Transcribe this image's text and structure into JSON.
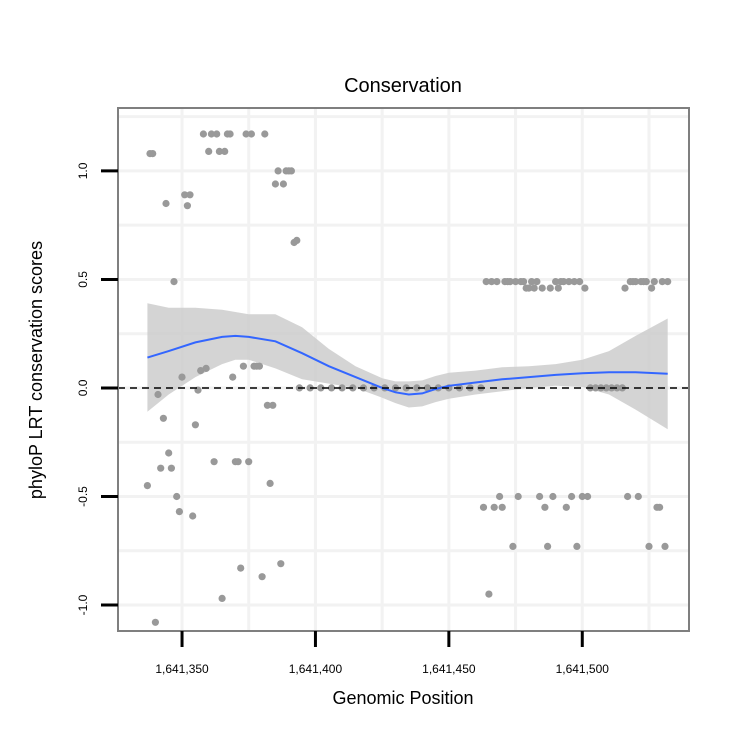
{
  "chart_data": {
    "type": "scatter",
    "title": "Conservation",
    "xlabel": "Genomic Position",
    "ylabel": "phyloP LRT conservation scores",
    "xlim": [
      1641326,
      1641540
    ],
    "ylim": [
      -1.12,
      1.29
    ],
    "x_ticks": [
      1641350,
      1641400,
      1641450,
      1641500
    ],
    "x_tick_labels": [
      "1,641,350",
      "1,641,400",
      "1,641,450",
      "1,641,500"
    ],
    "y_ticks": [
      -1.0,
      -0.5,
      0.0,
      0.5,
      1.0
    ],
    "y_tick_labels": [
      "-1.0",
      "-0.5",
      "0.0",
      "0.5",
      "1.0"
    ],
    "reference_line": {
      "y": 0,
      "style": "dashed"
    },
    "grid": true,
    "colors": {
      "points": "#999999",
      "smooth_line": "#3366ff",
      "ribbon": "#cccccc",
      "panel_border": "#7f7f7f",
      "grid": "#f2f2f2"
    },
    "series": [
      {
        "name": "phyloP scores",
        "points": [
          [
            1641337,
            -0.45
          ],
          [
            1641338,
            1.08
          ],
          [
            1641339,
            1.08
          ],
          [
            1641340,
            -1.08
          ],
          [
            1641341,
            -0.03
          ],
          [
            1641342,
            -0.37
          ],
          [
            1641343,
            -0.14
          ],
          [
            1641344,
            0.85
          ],
          [
            1641345,
            -0.3
          ],
          [
            1641346,
            -0.37
          ],
          [
            1641347,
            0.49
          ],
          [
            1641348,
            -0.5
          ],
          [
            1641349,
            -0.57
          ],
          [
            1641350,
            0.05
          ],
          [
            1641351,
            0.89
          ],
          [
            1641352,
            0.84
          ],
          [
            1641353,
            0.89
          ],
          [
            1641354,
            -0.59
          ],
          [
            1641355,
            -0.17
          ],
          [
            1641356,
            -0.01
          ],
          [
            1641357,
            0.08
          ],
          [
            1641358,
            1.17
          ],
          [
            1641359,
            0.09
          ],
          [
            1641360,
            1.09
          ],
          [
            1641361,
            1.17
          ],
          [
            1641362,
            -0.34
          ],
          [
            1641363,
            1.17
          ],
          [
            1641364,
            1.09
          ],
          [
            1641365,
            -0.97
          ],
          [
            1641366,
            1.09
          ],
          [
            1641367,
            1.17
          ],
          [
            1641368,
            1.17
          ],
          [
            1641369,
            0.05
          ],
          [
            1641370,
            -0.34
          ],
          [
            1641371,
            -0.34
          ],
          [
            1641372,
            -0.83
          ],
          [
            1641373,
            0.1
          ],
          [
            1641374,
            1.17
          ],
          [
            1641375,
            -0.34
          ],
          [
            1641376,
            1.17
          ],
          [
            1641377,
            0.1
          ],
          [
            1641378,
            0.1
          ],
          [
            1641379,
            0.1
          ],
          [
            1641380,
            -0.87
          ],
          [
            1641381,
            1.17
          ],
          [
            1641382,
            -0.08
          ],
          [
            1641383,
            -0.44
          ],
          [
            1641384,
            -0.08
          ],
          [
            1641385,
            0.94
          ],
          [
            1641386,
            1.0
          ],
          [
            1641387,
            -0.81
          ],
          [
            1641388,
            0.94
          ],
          [
            1641389,
            1.0
          ],
          [
            1641390,
            1.0
          ],
          [
            1641391,
            1.0
          ],
          [
            1641392,
            0.67
          ],
          [
            1641393,
            0.68
          ],
          [
            1641394,
            0.0
          ],
          [
            1641398,
            0.0
          ],
          [
            1641402,
            0.0
          ],
          [
            1641406,
            0.0
          ],
          [
            1641410,
            0.0
          ],
          [
            1641414,
            0.0
          ],
          [
            1641418,
            0.0
          ],
          [
            1641422,
            0.0
          ],
          [
            1641426,
            0.0
          ],
          [
            1641430,
            0.0
          ],
          [
            1641434,
            0.0
          ],
          [
            1641438,
            0.0
          ],
          [
            1641442,
            0.0
          ],
          [
            1641446,
            0.0
          ],
          [
            1641450,
            0.0
          ],
          [
            1641454,
            0.0
          ],
          [
            1641458,
            0.0
          ],
          [
            1641462,
            0.0
          ],
          [
            1641463,
            -0.55
          ],
          [
            1641464,
            0.49
          ],
          [
            1641465,
            -0.95
          ],
          [
            1641466,
            0.49
          ],
          [
            1641467,
            -0.55
          ],
          [
            1641468,
            0.49
          ],
          [
            1641469,
            -0.5
          ],
          [
            1641470,
            -0.55
          ],
          [
            1641471,
            0.49
          ],
          [
            1641472,
            0.49
          ],
          [
            1641473,
            0.49
          ],
          [
            1641474,
            -0.73
          ],
          [
            1641475,
            0.49
          ],
          [
            1641476,
            -0.5
          ],
          [
            1641477,
            0.49
          ],
          [
            1641478,
            0.49
          ],
          [
            1641479,
            0.46
          ],
          [
            1641480,
            0.46
          ],
          [
            1641481,
            0.49
          ],
          [
            1641482,
            0.46
          ],
          [
            1641483,
            0.49
          ],
          [
            1641484,
            -0.5
          ],
          [
            1641485,
            0.46
          ],
          [
            1641486,
            -0.55
          ],
          [
            1641487,
            -0.73
          ],
          [
            1641488,
            0.46
          ],
          [
            1641489,
            -0.5
          ],
          [
            1641490,
            0.49
          ],
          [
            1641491,
            0.46
          ],
          [
            1641492,
            0.49
          ],
          [
            1641493,
            0.49
          ],
          [
            1641494,
            -0.55
          ],
          [
            1641495,
            0.49
          ],
          [
            1641496,
            -0.5
          ],
          [
            1641497,
            0.49
          ],
          [
            1641498,
            -0.73
          ],
          [
            1641499,
            0.49
          ],
          [
            1641500,
            -0.5
          ],
          [
            1641501,
            0.46
          ],
          [
            1641502,
            -0.5
          ],
          [
            1641503,
            0.0
          ],
          [
            1641505,
            0.0
          ],
          [
            1641507,
            0.0
          ],
          [
            1641509,
            0.0
          ],
          [
            1641511,
            0.0
          ],
          [
            1641513,
            0.0
          ],
          [
            1641515,
            0.0
          ],
          [
            1641516,
            0.46
          ],
          [
            1641517,
            -0.5
          ],
          [
            1641518,
            0.49
          ],
          [
            1641519,
            0.49
          ],
          [
            1641520,
            0.49
          ],
          [
            1641521,
            -0.5
          ],
          [
            1641522,
            0.49
          ],
          [
            1641523,
            0.49
          ],
          [
            1641524,
            0.49
          ],
          [
            1641525,
            -0.73
          ],
          [
            1641526,
            0.46
          ],
          [
            1641527,
            0.49
          ],
          [
            1641528,
            -0.55
          ],
          [
            1641529,
            -0.55
          ],
          [
            1641530,
            0.49
          ],
          [
            1641531,
            -0.73
          ],
          [
            1641532,
            0.49
          ]
        ]
      },
      {
        "name": "smooth fit",
        "x": [
          1641337,
          1641345,
          1641355,
          1641365,
          1641370,
          1641375,
          1641385,
          1641395,
          1641405,
          1641415,
          1641425,
          1641430,
          1641435,
          1641440,
          1641445,
          1641450,
          1641460,
          1641470,
          1641480,
          1641490,
          1641500,
          1641510,
          1641520,
          1641532
        ],
        "y": [
          0.14,
          0.17,
          0.21,
          0.235,
          0.24,
          0.235,
          0.215,
          0.16,
          0.1,
          0.05,
          0.0,
          -0.02,
          -0.03,
          -0.025,
          -0.005,
          0.01,
          0.025,
          0.04,
          0.05,
          0.06,
          0.068,
          0.072,
          0.072,
          0.065
        ],
        "ci_lower": [
          -0.11,
          -0.03,
          0.05,
          0.11,
          0.13,
          0.13,
          0.09,
          0.04,
          0.02,
          0.0,
          -0.045,
          -0.07,
          -0.09,
          -0.085,
          -0.065,
          -0.05,
          -0.03,
          -0.015,
          0.0,
          0.01,
          0.005,
          -0.03,
          -0.1,
          -0.19
        ],
        "ci_upper": [
          0.39,
          0.37,
          0.37,
          0.36,
          0.35,
          0.34,
          0.34,
          0.28,
          0.18,
          0.1,
          0.045,
          0.03,
          0.03,
          0.035,
          0.055,
          0.07,
          0.08,
          0.095,
          0.1,
          0.11,
          0.13,
          0.17,
          0.24,
          0.32
        ]
      }
    ]
  }
}
